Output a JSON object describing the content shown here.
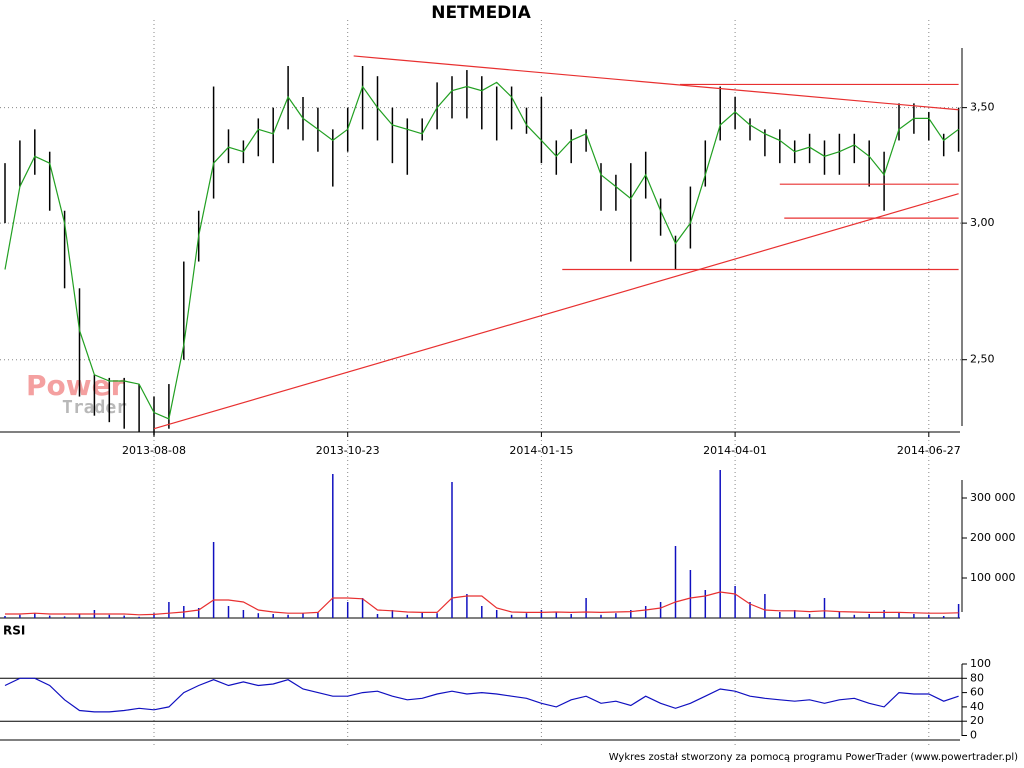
{
  "chart_data": [
    {
      "type": "hl-bar",
      "title": "NETMEDIA",
      "categories": [
        null,
        null,
        null,
        null,
        null,
        null,
        null,
        null,
        null,
        null,
        "2013-08-08",
        null,
        null,
        null,
        null,
        null,
        null,
        null,
        null,
        null,
        null,
        null,
        null,
        "2013-10-23",
        null,
        null,
        null,
        null,
        null,
        null,
        null,
        null,
        null,
        null,
        null,
        null,
        "2014-01-15",
        null,
        null,
        null,
        null,
        null,
        null,
        null,
        null,
        null,
        null,
        null,
        null,
        "2014-04-01",
        null,
        null,
        null,
        null,
        null,
        null,
        null,
        null,
        null,
        null,
        null,
        null,
        "2014-06-27",
        null,
        null
      ],
      "high": [
        3.25,
        3.35,
        3.4,
        3.3,
        3.05,
        2.75,
        2.45,
        2.44,
        2.44,
        2.42,
        2.38,
        2.42,
        2.85,
        3.05,
        3.6,
        3.4,
        3.35,
        3.45,
        3.5,
        3.7,
        3.55,
        3.5,
        3.4,
        3.5,
        3.7,
        3.65,
        3.5,
        3.45,
        3.45,
        3.62,
        3.65,
        3.68,
        3.65,
        3.6,
        3.6,
        3.5,
        3.55,
        3.35,
        3.4,
        3.4,
        3.25,
        3.2,
        3.25,
        3.3,
        3.1,
        2.95,
        3.15,
        3.35,
        3.6,
        3.55,
        3.45,
        3.4,
        3.4,
        3.35,
        3.38,
        3.35,
        3.38,
        3.38,
        3.35,
        3.3,
        3.52,
        3.52,
        3.48,
        3.38,
        3.5
      ],
      "low": [
        3.0,
        3.15,
        3.2,
        3.05,
        2.75,
        2.38,
        2.32,
        2.3,
        2.28,
        2.27,
        2.26,
        2.28,
        2.5,
        2.85,
        3.1,
        3.25,
        3.25,
        3.28,
        3.25,
        3.4,
        3.35,
        3.3,
        3.15,
        3.3,
        3.4,
        3.35,
        3.25,
        3.2,
        3.35,
        3.4,
        3.45,
        3.45,
        3.4,
        3.35,
        3.4,
        3.38,
        3.25,
        3.2,
        3.25,
        3.3,
        3.05,
        3.05,
        2.85,
        3.1,
        2.95,
        2.82,
        2.9,
        3.15,
        3.35,
        3.4,
        3.35,
        3.28,
        3.25,
        3.25,
        3.25,
        3.2,
        3.2,
        3.25,
        3.15,
        3.05,
        3.35,
        3.38,
        3.35,
        3.28,
        3.3
      ],
      "ma": [
        2.82,
        3.15,
        3.28,
        3.25,
        3.0,
        2.6,
        2.45,
        2.43,
        2.43,
        2.42,
        2.33,
        2.31,
        2.55,
        2.95,
        3.25,
        3.32,
        3.3,
        3.4,
        3.38,
        3.55,
        3.45,
        3.4,
        3.35,
        3.4,
        3.6,
        3.5,
        3.42,
        3.4,
        3.38,
        3.5,
        3.58,
        3.6,
        3.58,
        3.62,
        3.55,
        3.42,
        3.35,
        3.28,
        3.35,
        3.38,
        3.2,
        3.15,
        3.1,
        3.2,
        3.05,
        2.92,
        3.0,
        3.2,
        3.42,
        3.48,
        3.42,
        3.38,
        3.35,
        3.3,
        3.32,
        3.28,
        3.3,
        3.33,
        3.28,
        3.2,
        3.4,
        3.45,
        3.45,
        3.35,
        3.4
      ],
      "bar_color": "#000000",
      "ma_color": "#22a022",
      "log_scale": true,
      "grid": true,
      "ylim": [
        2.27,
        3.79
      ],
      "yticks": [
        {
          "value": 2.5,
          "label": "2,50"
        },
        {
          "value": 3.0,
          "label": "3,00"
        },
        {
          "value": 3.5,
          "label": "3,50"
        }
      ],
      "trendline_color": "#e83030",
      "trendlines": [
        {
          "x0": 23.4,
          "y0": 3.75,
          "x1": 64,
          "y1": 3.49
        },
        {
          "x0": 10,
          "y0": 2.28,
          "x1": 64,
          "y1": 3.12
        },
        {
          "x0": 45.3,
          "y0": 3.61,
          "x1": 64,
          "y1": 3.61
        },
        {
          "x0": 52,
          "y0": 3.16,
          "x1": 64,
          "y1": 3.16
        },
        {
          "x0": 52.3,
          "y0": 3.02,
          "x1": 64,
          "y1": 3.02
        },
        {
          "x0": 37.4,
          "y0": 2.82,
          "x1": 64,
          "y1": 2.82
        }
      ]
    },
    {
      "type": "bar",
      "values": [
        5000,
        8000,
        12000,
        6000,
        4000,
        10000,
        20000,
        8000,
        6000,
        3000,
        12000,
        40000,
        30000,
        25000,
        190000,
        30000,
        20000,
        12000,
        10000,
        8000,
        12000,
        15000,
        360000,
        40000,
        50000,
        10000,
        20000,
        8000,
        15000,
        12000,
        340000,
        60000,
        30000,
        20000,
        8000,
        12000,
        20000,
        15000,
        10000,
        50000,
        8000,
        12000,
        20000,
        30000,
        40000,
        180000,
        120000,
        70000,
        370000,
        80000,
        40000,
        60000,
        15000,
        20000,
        10000,
        50000,
        15000,
        8000,
        10000,
        20000,
        15000,
        10000,
        8000,
        5000,
        35000
      ],
      "ma": [
        10000,
        10000,
        12000,
        10000,
        10000,
        10000,
        10000,
        10000,
        10000,
        8000,
        9000,
        12000,
        15000,
        20000,
        45000,
        45000,
        40000,
        20000,
        15000,
        12000,
        12000,
        14000,
        50000,
        50000,
        48000,
        20000,
        18000,
        15000,
        14000,
        14000,
        50000,
        55000,
        55000,
        25000,
        15000,
        14000,
        14000,
        15000,
        14000,
        15000,
        14000,
        15000,
        16000,
        20000,
        25000,
        40000,
        50000,
        55000,
        65000,
        60000,
        35000,
        20000,
        18000,
        18000,
        16000,
        18000,
        16000,
        15000,
        14000,
        14000,
        14000,
        13000,
        12000,
        12000,
        13000
      ],
      "color": "#1010c0",
      "ma_color": "#e83030",
      "ylim": [
        0,
        370000
      ],
      "yticks": [
        {
          "value": 100000,
          "label": "100 000"
        },
        {
          "value": 200000,
          "label": "200 000"
        },
        {
          "value": 300000,
          "label": "300 000"
        }
      ]
    },
    {
      "type": "line",
      "title": "RSI",
      "values": [
        70,
        80,
        80,
        70,
        50,
        35,
        33,
        33,
        35,
        38,
        36,
        40,
        60,
        70,
        78,
        70,
        75,
        70,
        72,
        78,
        65,
        60,
        55,
        55,
        60,
        62,
        55,
        50,
        52,
        58,
        62,
        58,
        60,
        58,
        55,
        52,
        45,
        40,
        50,
        55,
        45,
        48,
        42,
        55,
        45,
        38,
        45,
        55,
        65,
        62,
        55,
        52,
        50,
        48,
        50,
        45,
        50,
        52,
        45,
        40,
        60,
        58,
        58,
        48,
        55
      ],
      "color": "#1010c0",
      "ylim": [
        0,
        100
      ],
      "yticks": [
        0,
        20,
        40,
        60,
        80,
        100
      ],
      "levels": [
        20,
        80
      ]
    }
  ],
  "footer": "Wykres został stworzony za pomocą programu PowerTrader (www.powertrader.pl)",
  "watermark": [
    "Power",
    "Trader"
  ]
}
